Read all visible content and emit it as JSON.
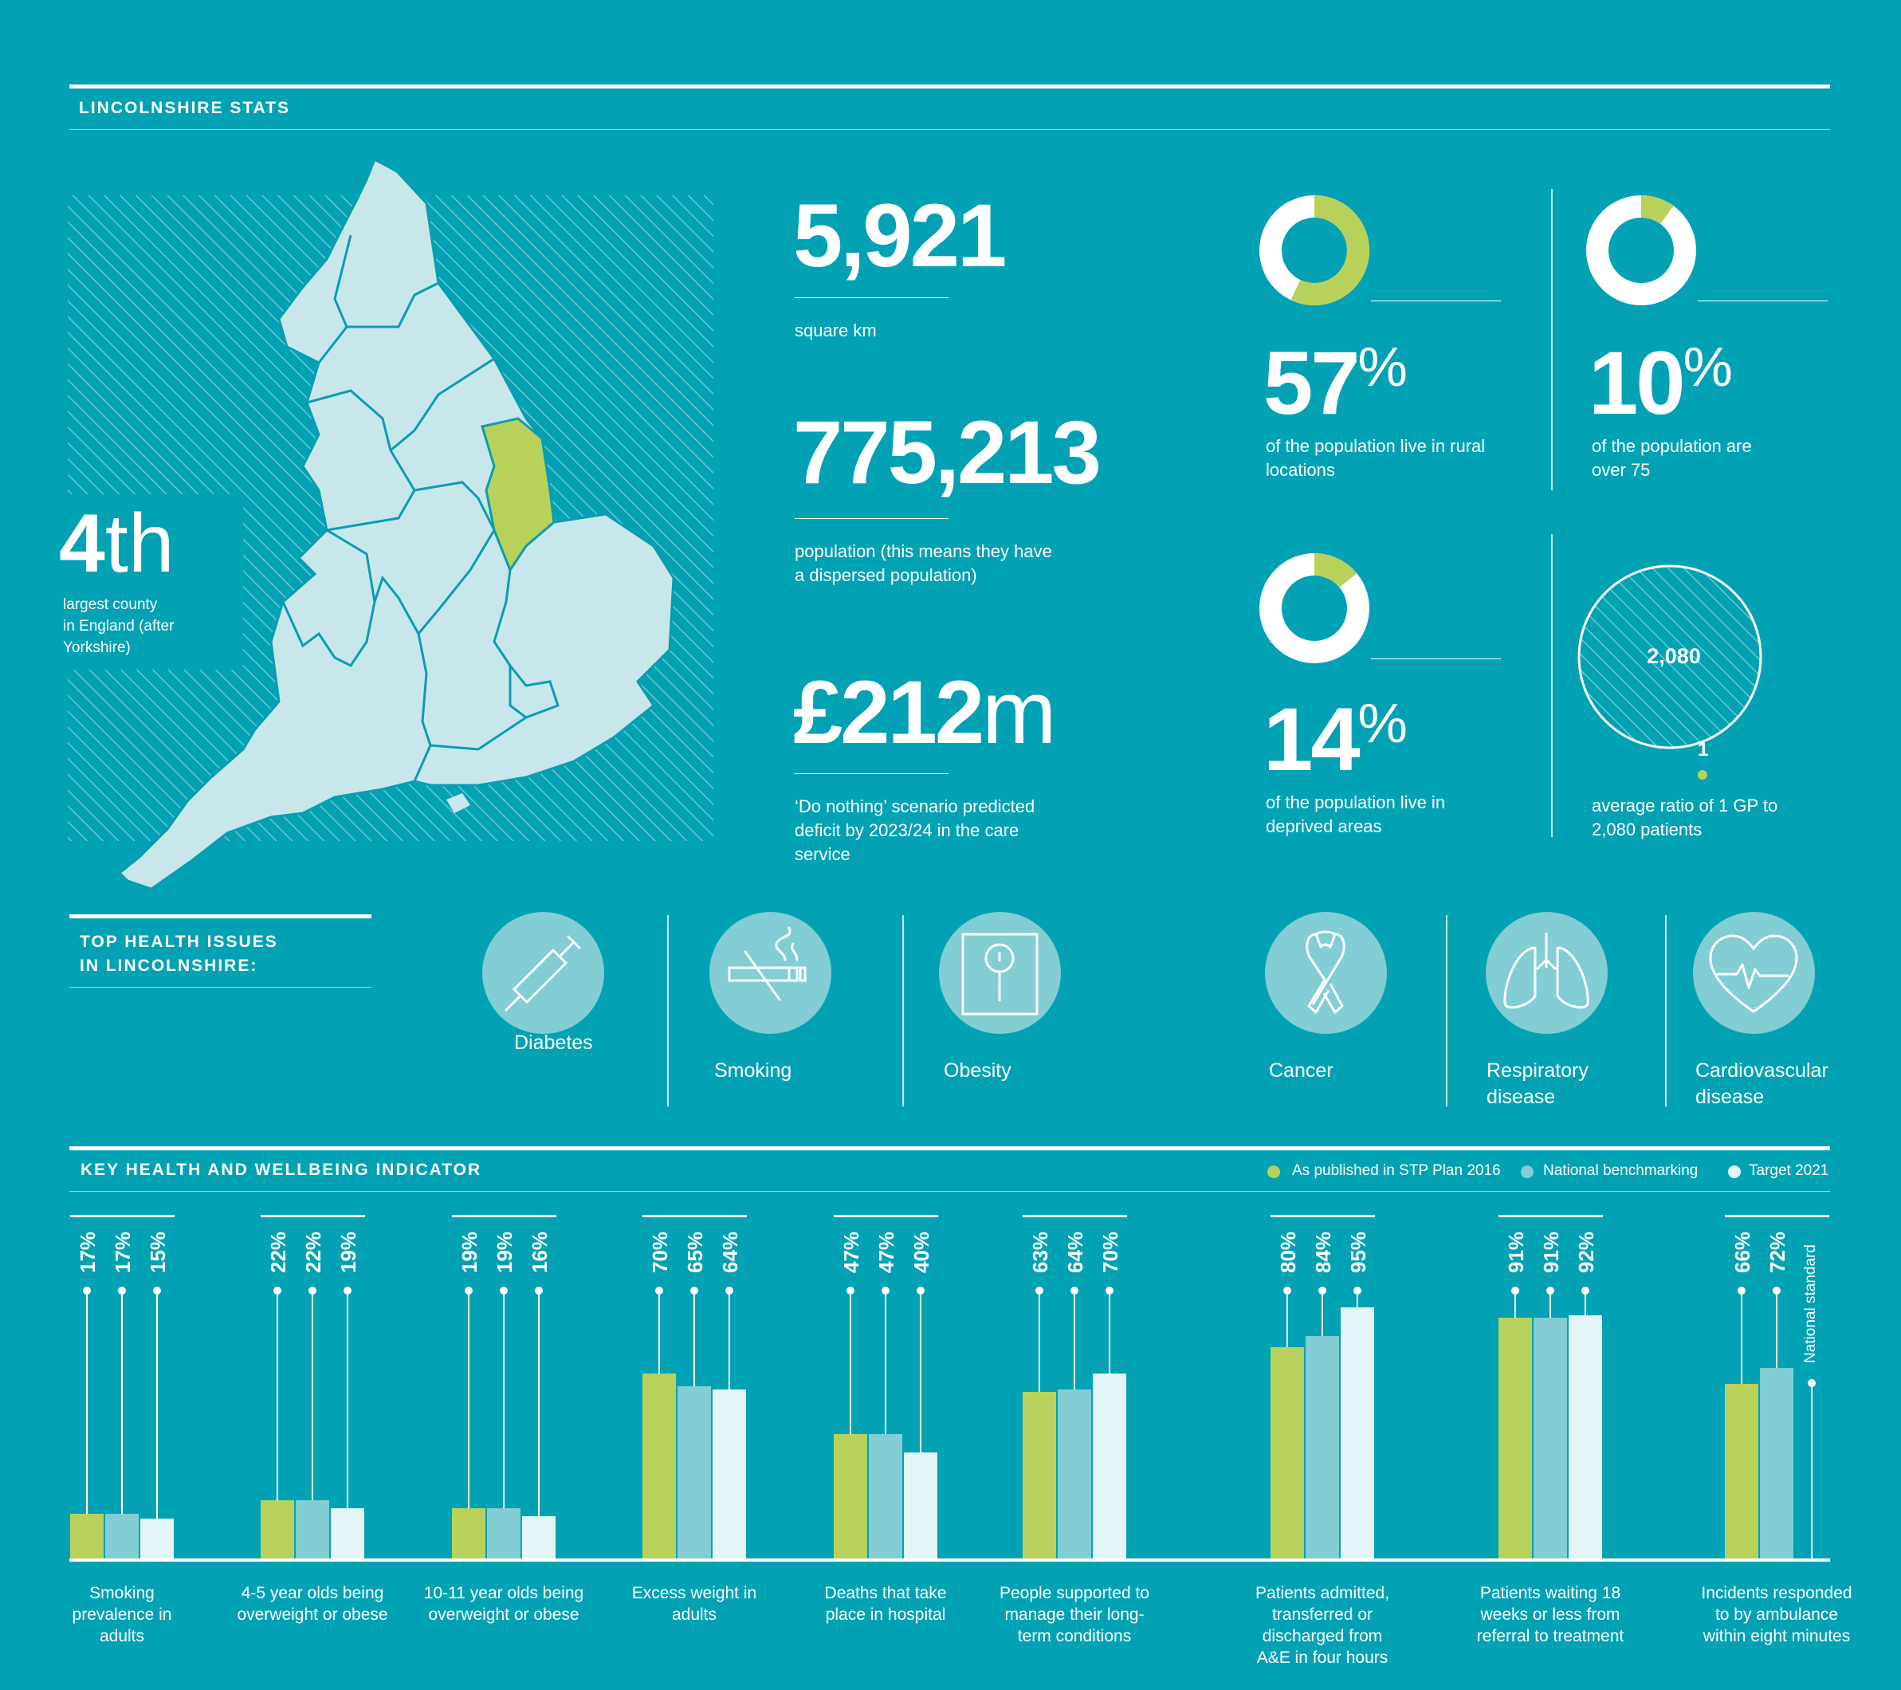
{
  "header": {
    "title": "LINCOLNSHIRE STATS"
  },
  "map": {
    "rank": "4",
    "rank_suffix": "th",
    "rank_caption_line1": "largest county",
    "rank_caption_line2": "in England (after",
    "rank_caption_line3": "Yorkshire)"
  },
  "stats": {
    "area": {
      "value": "5,921",
      "label": "square km"
    },
    "population": {
      "value": "775,213",
      "label_line1": "population (this means they have",
      "label_line2": "a dispersed population)"
    },
    "deficit": {
      "value": "£212",
      "unit": "m",
      "label_line1": "‘Do nothing’ scenario predicted",
      "label_line2": "deficit by 2023/24 in the care",
      "label_line3": "service"
    }
  },
  "donuts": [
    {
      "value": "57",
      "percent": 57,
      "suffix": "%",
      "label_line1": "of the population live in rural",
      "label_line2": "locations"
    },
    {
      "value": "10",
      "percent": 10,
      "suffix": "%",
      "label_line1": "of the population are",
      "label_line2": "over 75"
    },
    {
      "value": "14",
      "percent": 14,
      "suffix": "%",
      "label_line1": "of the population live in",
      "label_line2": "deprived areas"
    }
  ],
  "gp_ratio": {
    "patients": "2,080",
    "gp": "1",
    "label_line1": "average ratio of 1 GP to",
    "label_line2": "2,080 patients"
  },
  "issues": {
    "title_line1": "TOP HEALTH ISSUES",
    "title_line2": "IN LINCOLNSHIRE:",
    "items": [
      {
        "label": "Diabetes",
        "icon": "syringe-icon"
      },
      {
        "label": "Smoking",
        "icon": "no-smoking-icon"
      },
      {
        "label": "Obesity",
        "icon": "scale-icon"
      },
      {
        "label": "Cancer",
        "icon": "ribbon-icon"
      },
      {
        "label": "Respiratory",
        "label2": "disease",
        "icon": "lungs-icon"
      },
      {
        "label": "Cardiovascular",
        "label2": "disease",
        "icon": "heart-icon"
      }
    ]
  },
  "colors": {
    "background": "#02a2b4",
    "green": "#b8d15a",
    "mid": "#83cdd4",
    "light": "#e3f5f7"
  },
  "chart_data": {
    "type": "bar",
    "title": "KEY HEALTH AND WELLBEING INDICATOR",
    "legend": [
      "As published in STP Plan 2016",
      "National benchmarking",
      "Target 2021"
    ],
    "ylim": [
      0,
      100
    ],
    "national_standard_label": "National standard",
    "categories": [
      {
        "label": [
          "Smoking",
          "prevalence in",
          "adults"
        ],
        "values": [
          17,
          17,
          15
        ],
        "labels": [
          "17%",
          "17%",
          "15%"
        ]
      },
      {
        "label": [
          "4-5 year olds being",
          "overweight or obese"
        ],
        "values": [
          22,
          22,
          19
        ],
        "labels": [
          "22%",
          "22%",
          "19%"
        ]
      },
      {
        "label": [
          "10-11 year olds being",
          "overweight or obese"
        ],
        "values": [
          19,
          19,
          16
        ],
        "labels": [
          "19%",
          "19%",
          "16%"
        ]
      },
      {
        "label": [
          "Excess weight in",
          "adults"
        ],
        "values": [
          70,
          65,
          64
        ],
        "labels": [
          "70%",
          "65%",
          "64%"
        ]
      },
      {
        "label": [
          "Deaths that take",
          "place in hospital"
        ],
        "values": [
          47,
          47,
          40
        ],
        "labels": [
          "47%",
          "47%",
          "40%"
        ]
      },
      {
        "label": [
          "People supported to",
          "manage their long-",
          "term conditions"
        ],
        "values": [
          63,
          64,
          70
        ],
        "labels": [
          "63%",
          "64%",
          "70%"
        ]
      },
      {
        "label": [
          "Patients admitted,",
          "transferred or",
          "discharged from",
          "A&E in four hours"
        ],
        "values": [
          80,
          84,
          95
        ],
        "labels": [
          "80%",
          "84%",
          "95%"
        ]
      },
      {
        "label": [
          "Patients waiting 18",
          "weeks or less from",
          "referral to treatment"
        ],
        "values": [
          91,
          91,
          92
        ],
        "labels": [
          "91%",
          "91%",
          "92%"
        ]
      },
      {
        "label": [
          "Incidents responded",
          "to by ambulance",
          "within eight minutes"
        ],
        "values": [
          66,
          72,
          null
        ],
        "labels": [
          "66%",
          "72%",
          ""
        ]
      }
    ]
  }
}
